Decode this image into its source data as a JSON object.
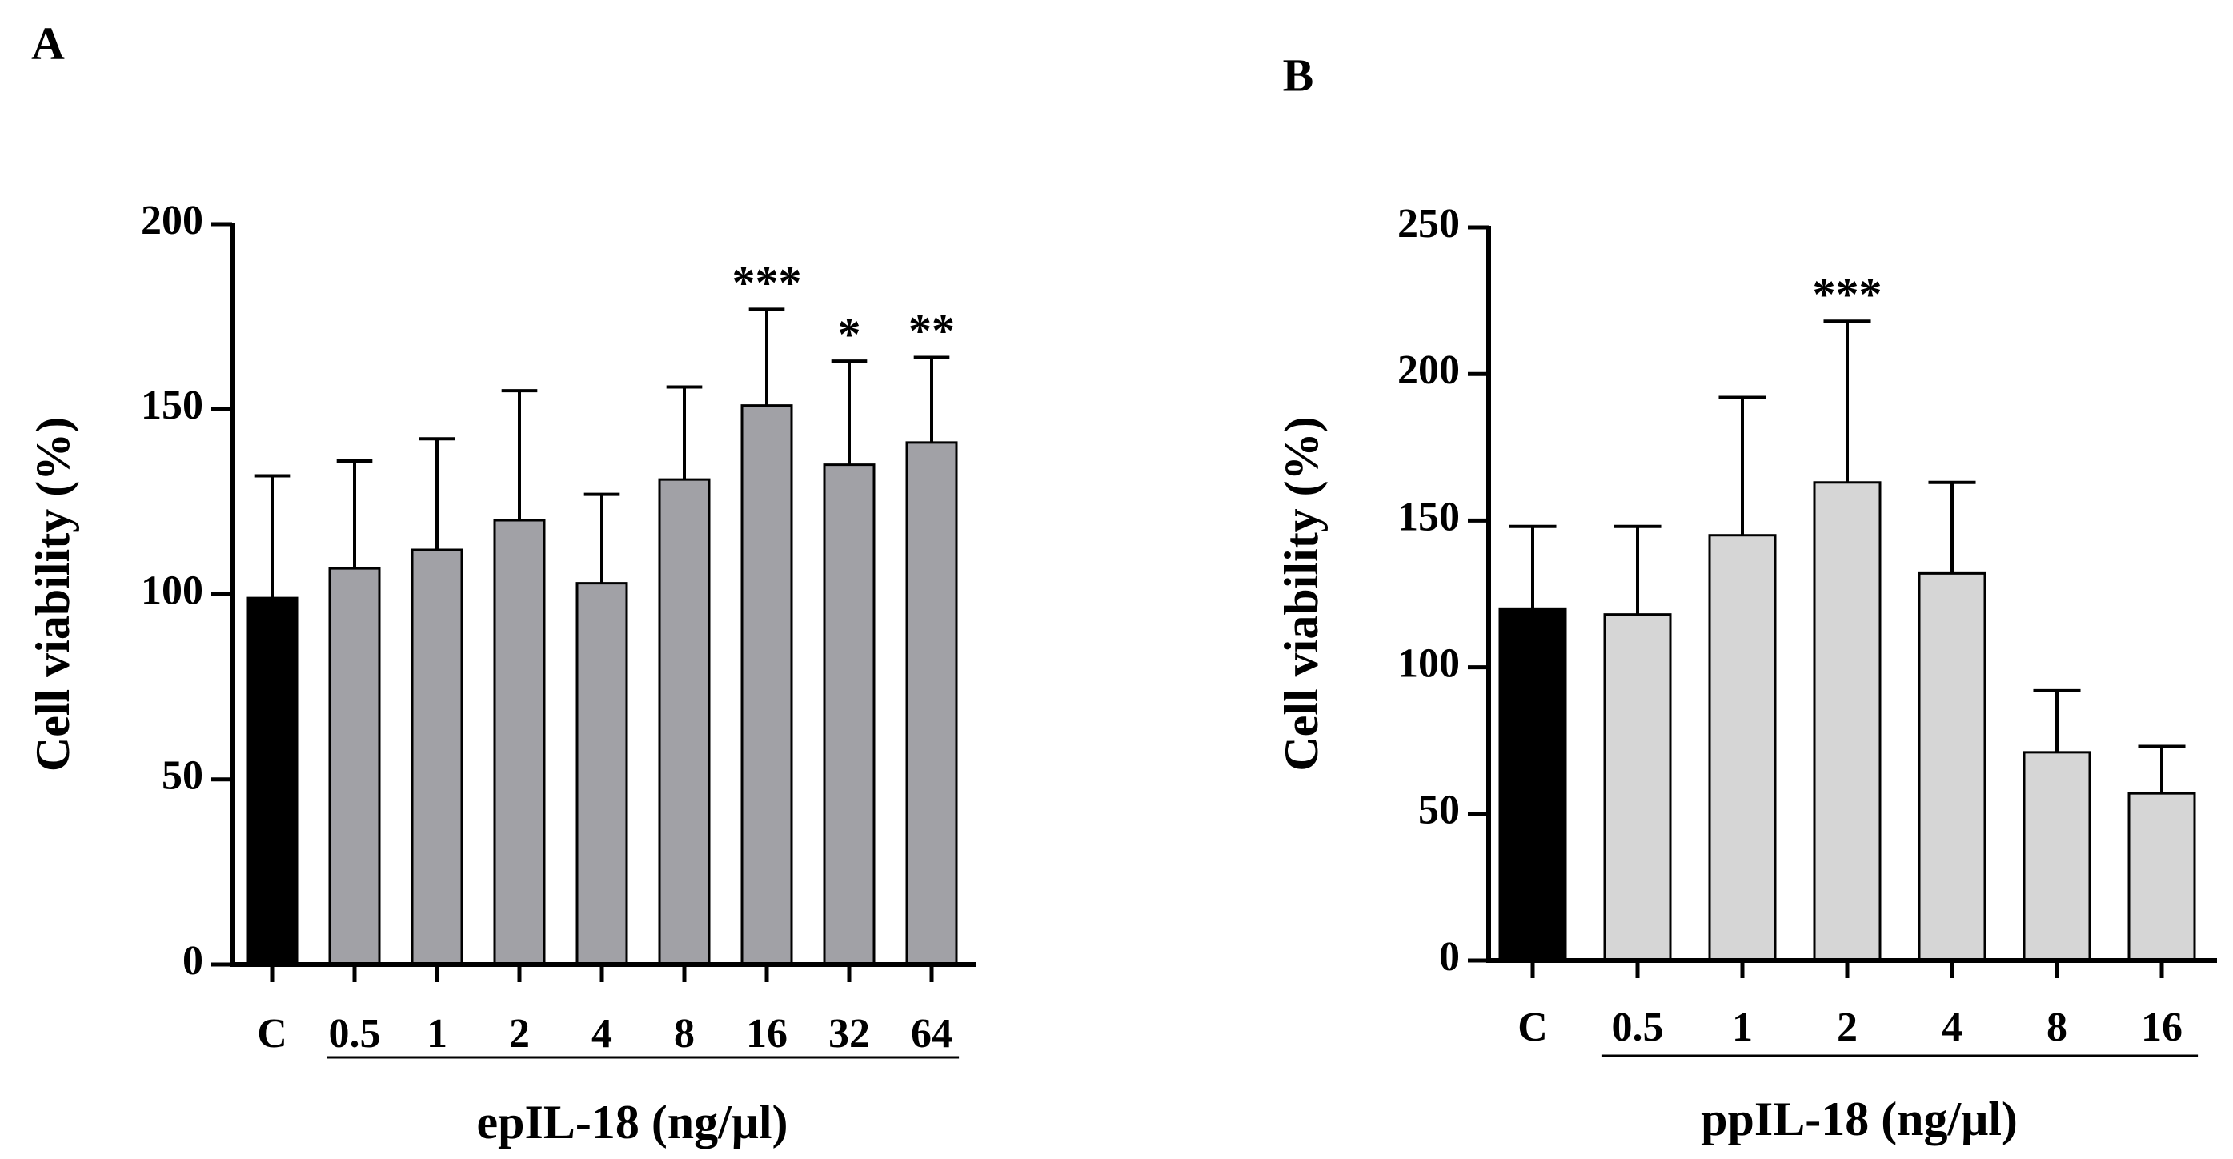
{
  "colors": {
    "control_bar": "#000000",
    "panel_a_bar": "#a1a1a6",
    "panel_b_bar": "#d6d6d6",
    "axis": "#000000"
  },
  "chart_data": [
    {
      "panel_label": "A",
      "type": "bar",
      "ylabel": "Cell viability (%)",
      "xlabel": "epIL-18 (ng/μl)",
      "ylim": [
        0,
        200
      ],
      "yticks": [
        0,
        50,
        100,
        150,
        200
      ],
      "categories": [
        "C",
        "0.5",
        "1",
        "2",
        "4",
        "8",
        "16",
        "32",
        "64"
      ],
      "values": [
        99,
        107,
        112,
        120,
        103,
        131,
        151,
        135,
        141
      ],
      "errors": [
        33,
        29,
        30,
        35,
        24,
        25,
        26,
        28,
        23
      ],
      "significance": [
        "",
        "",
        "",
        "",
        "",
        "",
        "***",
        "*",
        "**"
      ],
      "legend": "none",
      "grid": false
    },
    {
      "panel_label": "B",
      "type": "bar",
      "ylabel": "Cell viability (%)",
      "xlabel": "ppIL-18 (ng/μl)",
      "ylim": [
        0,
        250
      ],
      "yticks": [
        0,
        50,
        100,
        150,
        200,
        250
      ],
      "categories": [
        "C",
        "0.5",
        "1",
        "2",
        "4",
        "8",
        "16"
      ],
      "values": [
        120,
        118,
        145,
        163,
        132,
        71,
        57
      ],
      "errors": [
        28,
        30,
        47,
        55,
        31,
        21,
        16
      ],
      "significance": [
        "",
        "",
        "",
        "***",
        "",
        "",
        ""
      ],
      "legend": "none",
      "grid": false
    }
  ]
}
